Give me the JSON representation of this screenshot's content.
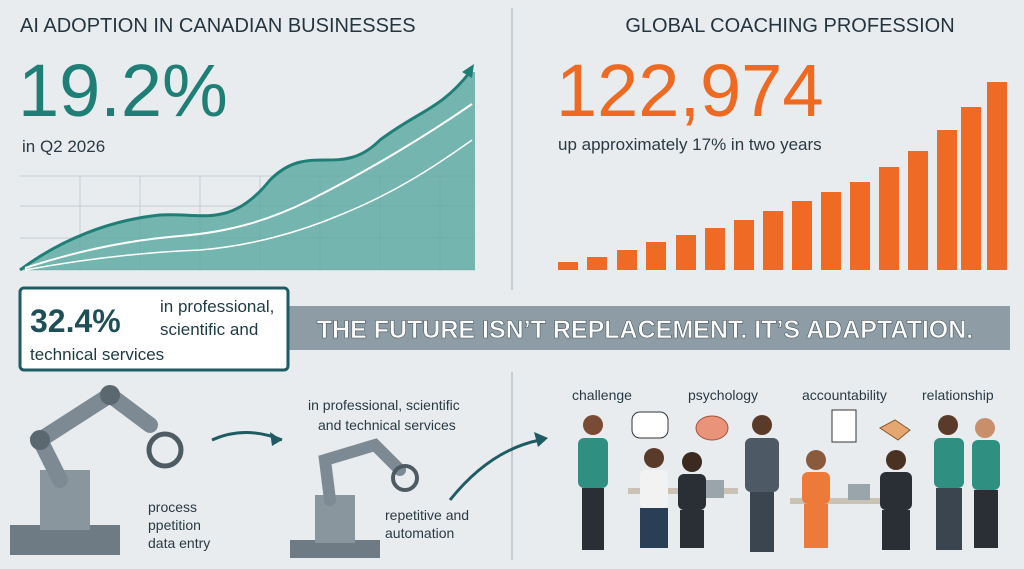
{
  "left": {
    "title": "AI ADOPTION IN CANADIAN BUSINESSES",
    "stat": "19.2%",
    "caption": "in Q2 2026"
  },
  "right": {
    "title": "GLOBAL COACHING PROFESSION",
    "stat": "122,974",
    "caption": "up approximately 17% in two years"
  },
  "callout": {
    "stat": "32.4%",
    "lines": [
      "in professional,",
      "scientific and",
      "technical services"
    ]
  },
  "banner": "THE FUTURE ISN’T REPLACEMENT. IT’S ADAPTATION.",
  "automation": {
    "left_lines": [
      "process",
      "ppetition",
      "data entry"
    ],
    "top_lines": [
      "in professional, scientific",
      "and technical services"
    ],
    "right_lines": [
      "repetitive and",
      "automation"
    ]
  },
  "coaching_labels": [
    "challenge",
    "psychology",
    "accountability",
    "relationship"
  ]
}
